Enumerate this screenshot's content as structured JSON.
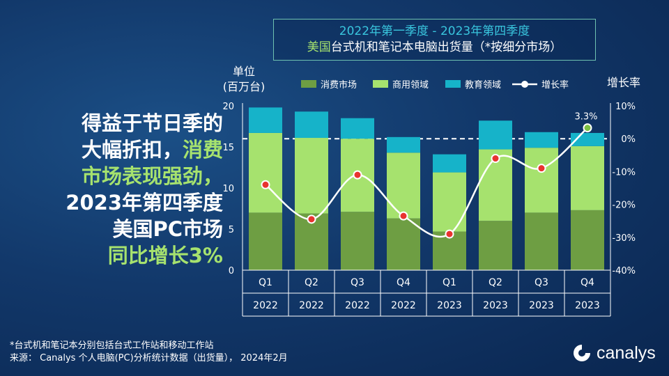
{
  "title": {
    "line1": "2022年第一季度 - 2023年第四季度",
    "line2_hl": "美国",
    "line2_rest": "台式机和笔记本电脑出货量（*按细分市场）"
  },
  "headline": {
    "l1": "得益于节日季的",
    "l2a": "大幅折扣，",
    "l2b": "消费",
    "l3": "市场表现强劲，",
    "l4": "2023年第四季度",
    "l5": "美国PC市场",
    "l6": "同比增长3%"
  },
  "footnote": {
    "line1": "*台式机和笔记本分别包括台式工作站和移动工作站",
    "line2": "来源： Canalys 个人电脑(PC)分析统计数据（出货量）， 2024年2月"
  },
  "logo": {
    "text": "canalys"
  },
  "colors": {
    "consumer": "#6e9e43",
    "commercial": "#a6e26e",
    "education": "#16b3c9",
    "growth": "#ffffff",
    "growth_marker_neg": "#e8332f",
    "growth_marker_pos": "#7dc043"
  },
  "chart_data": {
    "type": "bar",
    "stacked": true,
    "categories": [
      "Q1",
      "Q2",
      "Q3",
      "Q4",
      "Q1",
      "Q2",
      "Q3",
      "Q4"
    ],
    "years": [
      "2022",
      "2022",
      "2022",
      "2022",
      "2023",
      "2023",
      "2023",
      "2023"
    ],
    "ylabel_line1": "单位",
    "ylabel_line2": "(百万台)",
    "y2label": "增长率",
    "ylim": [
      0,
      20
    ],
    "yticks": [
      "0",
      "5",
      "10",
      "15",
      "20"
    ],
    "y2lim": [
      -40,
      10
    ],
    "y2ticks": [
      "-40%",
      "-30%",
      "-20%",
      "-10%",
      "0%",
      "10%"
    ],
    "series": [
      {
        "name": "消费市场",
        "values": [
          7.0,
          6.9,
          7.1,
          6.3,
          4.7,
          6.0,
          7.0,
          7.3
        ]
      },
      {
        "name": "商用领域",
        "values": [
          9.7,
          9.2,
          8.9,
          8.0,
          7.2,
          8.7,
          7.9,
          7.8
        ]
      },
      {
        "name": "教育领域",
        "values": [
          3.1,
          3.2,
          2.5,
          1.9,
          2.2,
          3.5,
          1.9,
          1.6
        ]
      }
    ],
    "line_series": {
      "name": "增长率",
      "values": [
        -14,
        -24.5,
        -11,
        -23.5,
        -29,
        -6,
        -9,
        3.3
      ]
    },
    "annotation": "3.3%",
    "legend_position": "top"
  }
}
